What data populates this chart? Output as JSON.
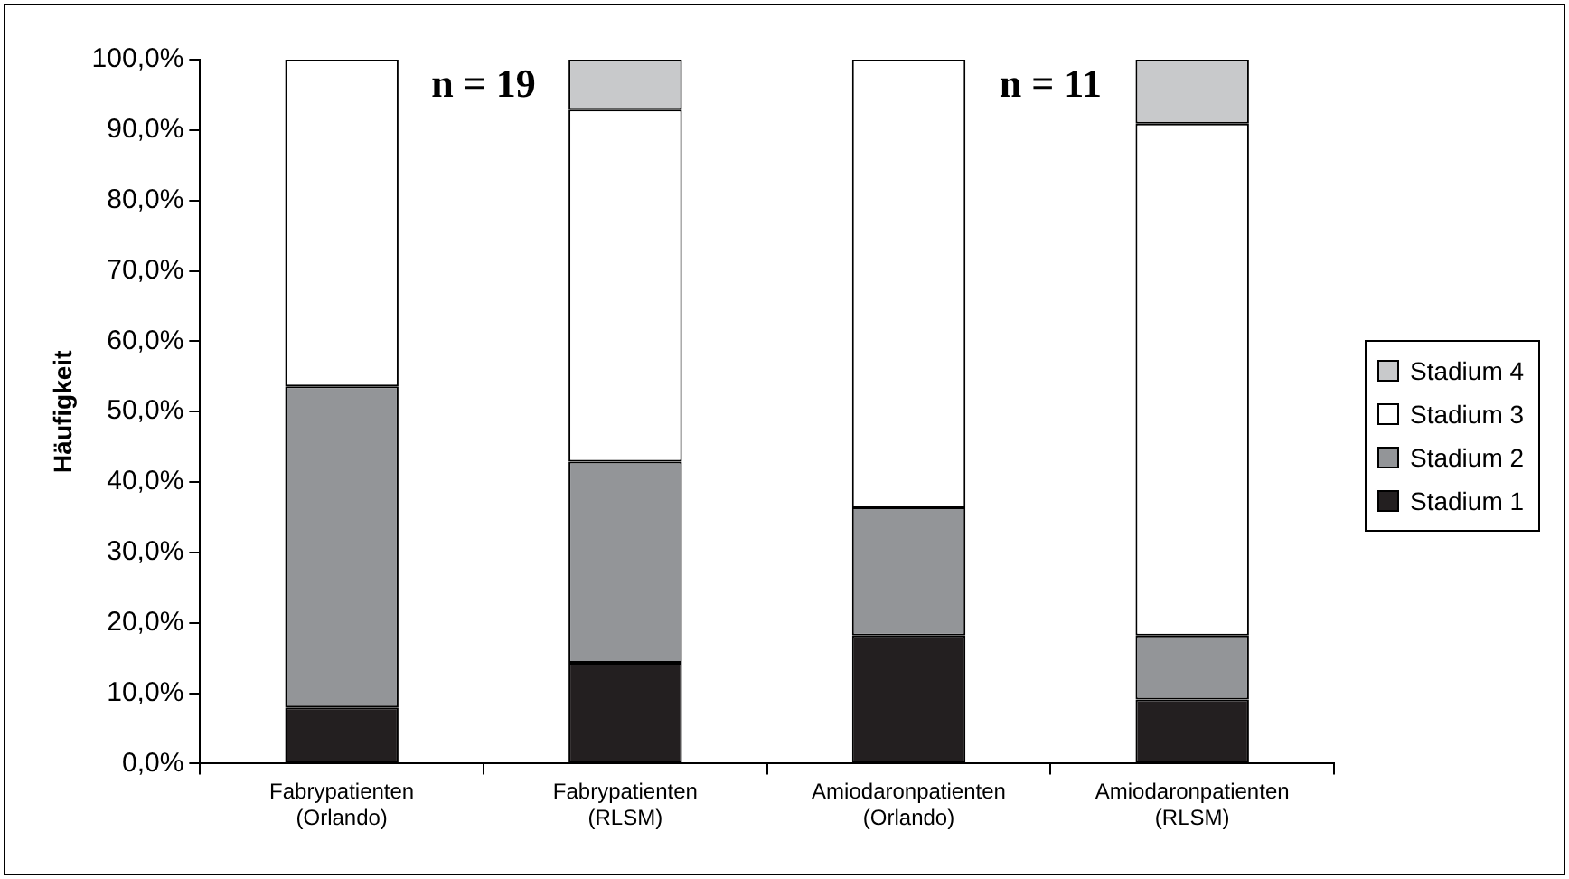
{
  "chart_data": {
    "type": "bar",
    "stacked": true,
    "ylabel": "Häufigkeit",
    "categories": [
      "Fabrypatienten (Orlando)",
      "Fabrypatienten (RLSM)",
      "Amiodaronpatienten (Orlando)",
      "Amiodaronpatienten (RLSM)"
    ],
    "series": [
      {
        "name": "Stadium 1",
        "color": "#231f20",
        "values": [
          8.0,
          14.3,
          18.2,
          9.1
        ]
      },
      {
        "name": "Stadium 2",
        "color": "#939598",
        "values": [
          45.6,
          28.6,
          18.2,
          9.1
        ]
      },
      {
        "name": "Stadium 3",
        "color": "#ffffff",
        "values": [
          46.4,
          50.0,
          63.6,
          72.7
        ]
      },
      {
        "name": "Stadium 4",
        "color": "#c8c9cb",
        "values": [
          0,
          7.1,
          0,
          9.1
        ]
      }
    ],
    "annotations": [
      "n = 19",
      "n = 11"
    ],
    "ylim": [
      0,
      100
    ],
    "yticks": [
      {
        "value": 0,
        "label": "0,0%"
      },
      {
        "value": 10,
        "label": "10,0%"
      },
      {
        "value": 20,
        "label": "20,0%"
      },
      {
        "value": 30,
        "label": "30,0%"
      },
      {
        "value": 40,
        "label": "40,0%"
      },
      {
        "value": 50,
        "label": "50,0%"
      },
      {
        "value": 60,
        "label": "60,0%"
      },
      {
        "value": 70,
        "label": "70,0%"
      },
      {
        "value": 80,
        "label": "80,0%"
      },
      {
        "value": 90,
        "label": "90,0%"
      },
      {
        "value": 100,
        "label": "100,0%"
      }
    ],
    "grid": false,
    "legend": "right"
  }
}
